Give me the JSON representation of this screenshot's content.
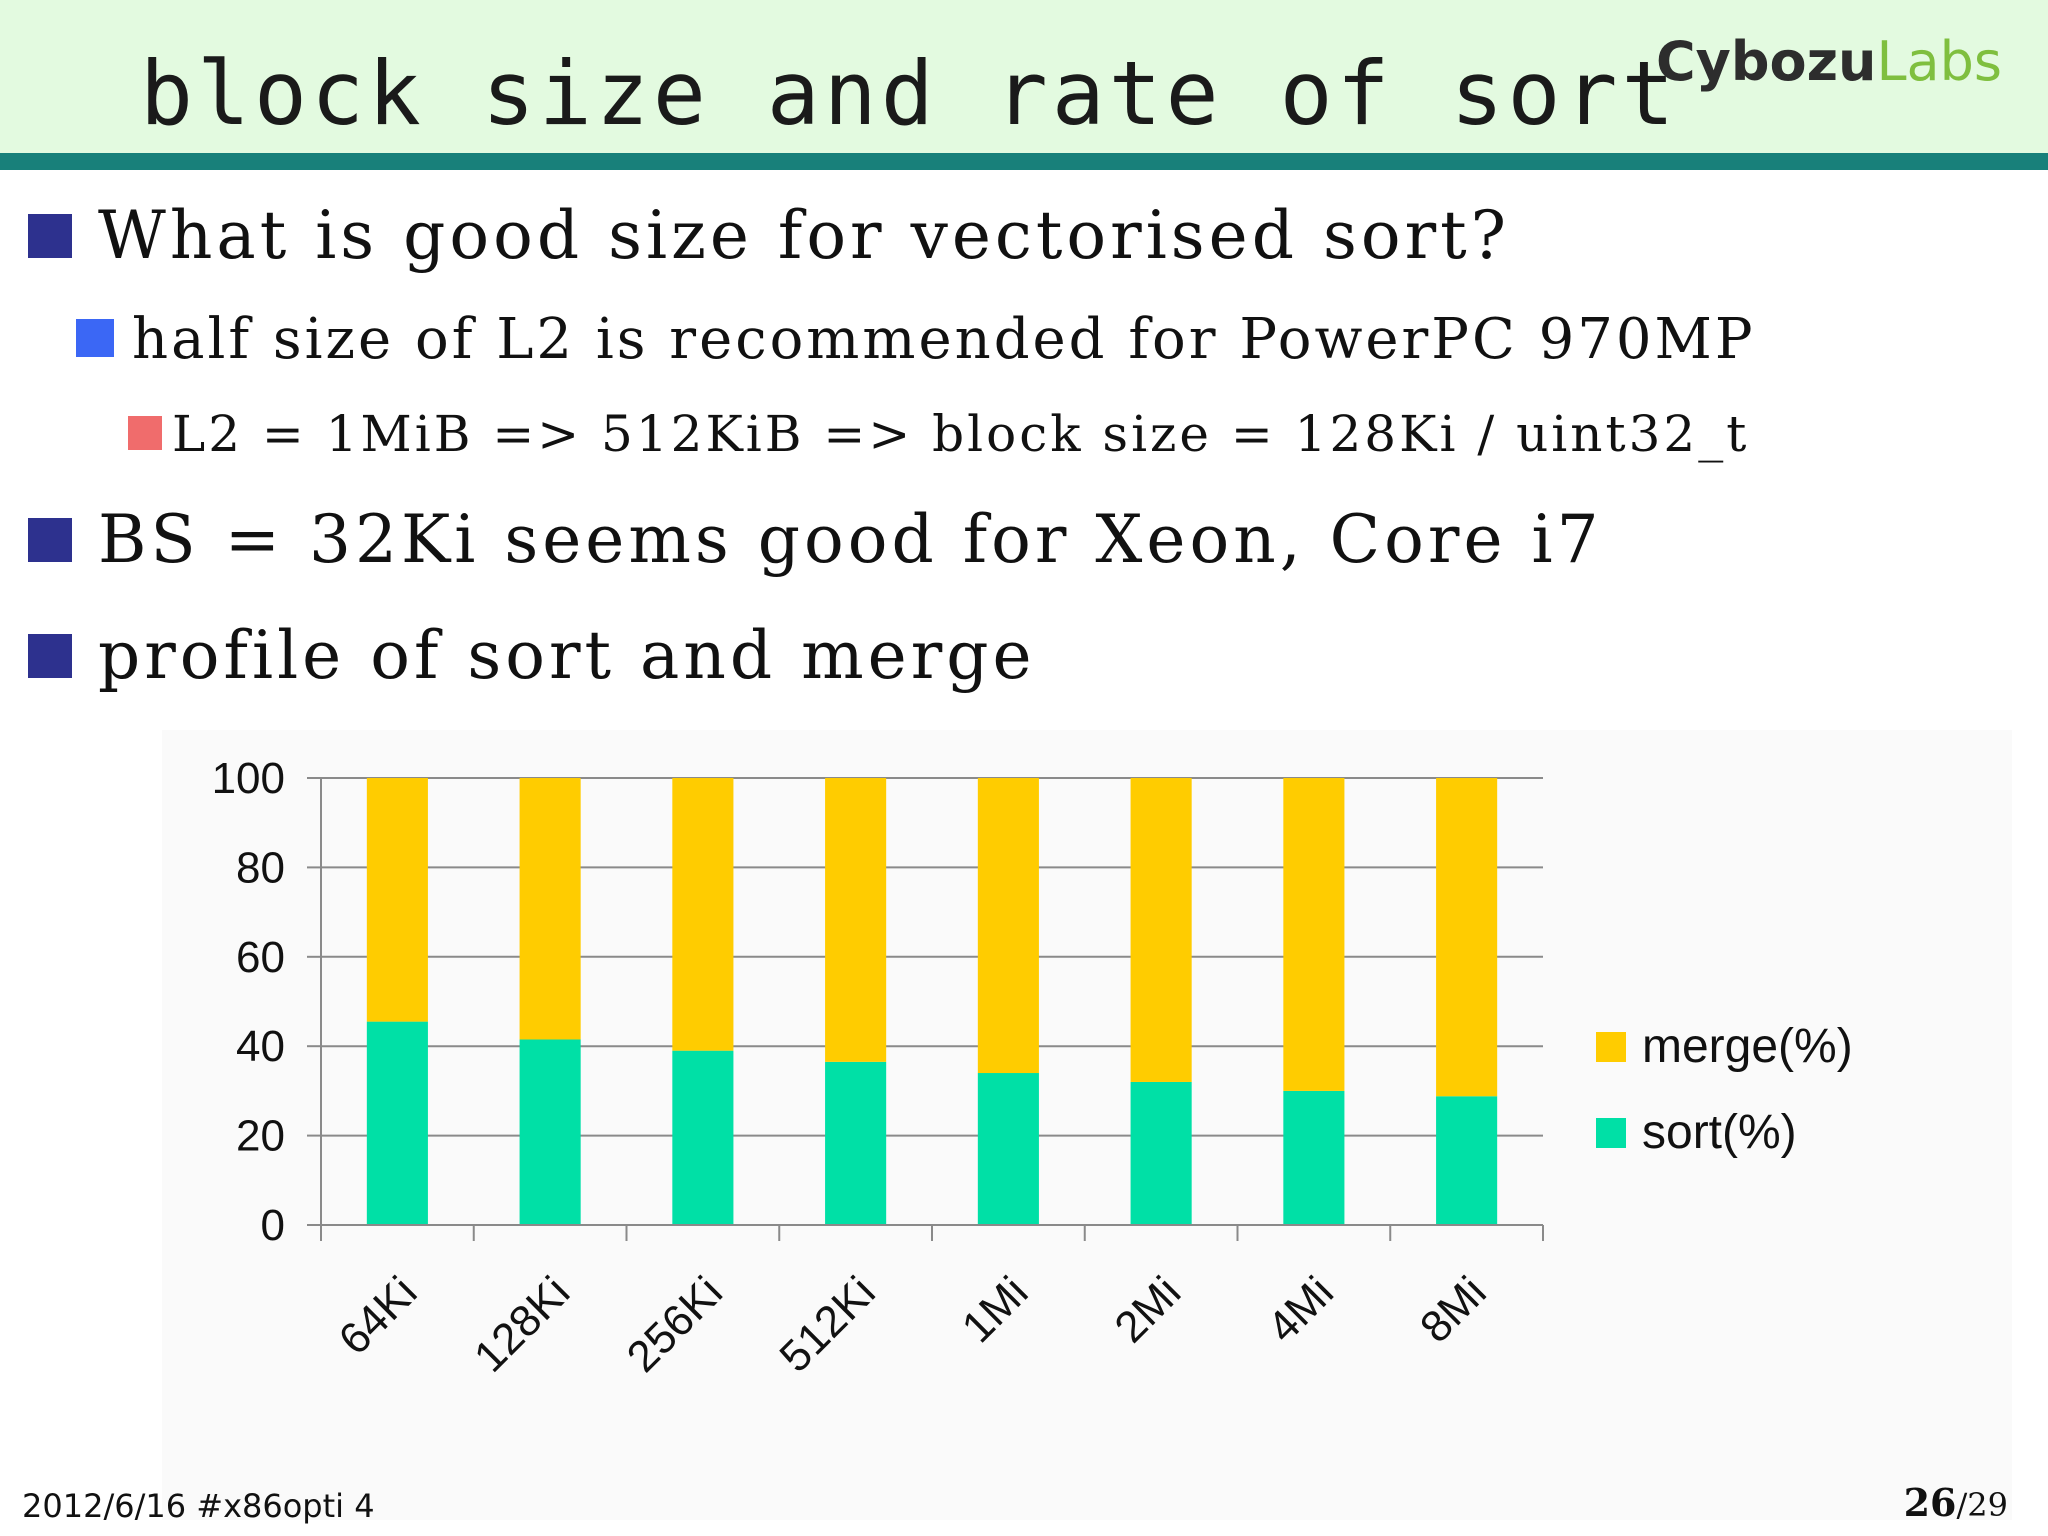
{
  "slide": {
    "title": "block size and rate of sort",
    "logo": {
      "part1": "Cybozu",
      "part2": "Labs"
    }
  },
  "bullets": [
    {
      "level": 1,
      "text": "What is good size for vectorised sort?"
    },
    {
      "level": 2,
      "text": "half size of L2 is recommended for PowerPC 970MP"
    },
    {
      "level": 3,
      "text": "L2 = 1MiB => 512KiB => block size = 128Ki / uint32_t"
    },
    {
      "level": 1,
      "text": "BS = 32Ki seems good for Xeon, Core i7"
    },
    {
      "level": 1,
      "text": "profile of sort and merge"
    }
  ],
  "chart_data": {
    "type": "bar",
    "stacked": true,
    "categories": [
      "64Ki",
      "128Ki",
      "256Ki",
      "512Ki",
      "1Mi",
      "2Mi",
      "4Mi",
      "8Mi"
    ],
    "series": [
      {
        "name": "sort(%)",
        "values": [
          45.5,
          41.5,
          39,
          36.5,
          34,
          32,
          30,
          28.8
        ],
        "color": "#00e0a6"
      },
      {
        "name": "merge(%)",
        "values": [
          54.5,
          58.5,
          61,
          63.5,
          66,
          68,
          70,
          71.2
        ],
        "color": "#ffcc00"
      }
    ],
    "ylim": [
      0,
      100
    ],
    "yticks": [
      "0",
      "20",
      "40",
      "60",
      "80",
      "100"
    ],
    "legend_order": [
      "merge(%)",
      "sort(%)"
    ],
    "legend_position": "right",
    "grid": true
  },
  "footer": {
    "left": "2012/6/16 #x86opti 4",
    "page": "26",
    "separator": "/",
    "total": "29"
  },
  "colors": {
    "header_bg": "#e3fae0",
    "header_rule": "#18807a",
    "bullet_level1": "#2d318e",
    "bullet_level2": "#3b67f5",
    "bullet_level3": "#f06c6c"
  }
}
